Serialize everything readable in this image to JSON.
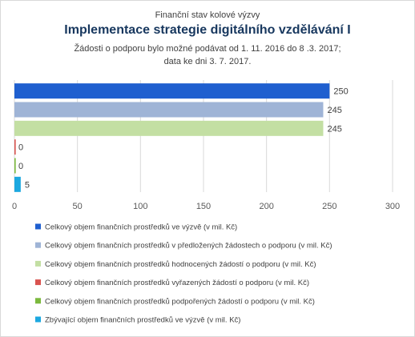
{
  "chart_data": {
    "type": "bar",
    "orientation": "horizontal",
    "supertitle": "Finanční stav kolové výzvy",
    "title": "Implementace strategie digitálního vzdělávání I",
    "subtitle_lines": [
      "Žádosti o podporu bylo možné  podávat od 1. 11. 2016 do 8 .3. 2017;",
      "data ke dni 3. 7. 2017."
    ],
    "xlim": [
      0,
      300
    ],
    "xticks": [
      0,
      50,
      100,
      150,
      200,
      250,
      300
    ],
    "grid": true,
    "legend_position": "bottom",
    "series": [
      {
        "name": "Celkový objem finančních prostředků ve výzvě (v mil. Kč)",
        "value": 250,
        "label": "250",
        "color": "#1f5fcf"
      },
      {
        "name": "Celkový objem finančních prostředků v předložených žádostech o podporu (v mil. Kč)",
        "value": 245,
        "label": "245",
        "color": "#9fb4d6"
      },
      {
        "name": "Celkový objem finančních prostředků hodnocených žádostí o podporu (v mil. Kč)",
        "value": 245,
        "label": "245",
        "color": "#c3dfa3"
      },
      {
        "name": "Celkový objem finančních prostředků vyřazených žádostí o podporu (v mil. Kč)",
        "value": 0,
        "label": "0",
        "color": "#d9534f"
      },
      {
        "name": "Celkový objem finančních prostředků podpořených žádostí o podporu (v mil. Kč)",
        "value": 0,
        "label": "0",
        "color": "#7bb93d"
      },
      {
        "name": "Zbývající objem finančních prostředků ve výzvě (v mil. Kč)",
        "value": 5,
        "label": "5",
        "color": "#1ca8e0"
      }
    ]
  }
}
